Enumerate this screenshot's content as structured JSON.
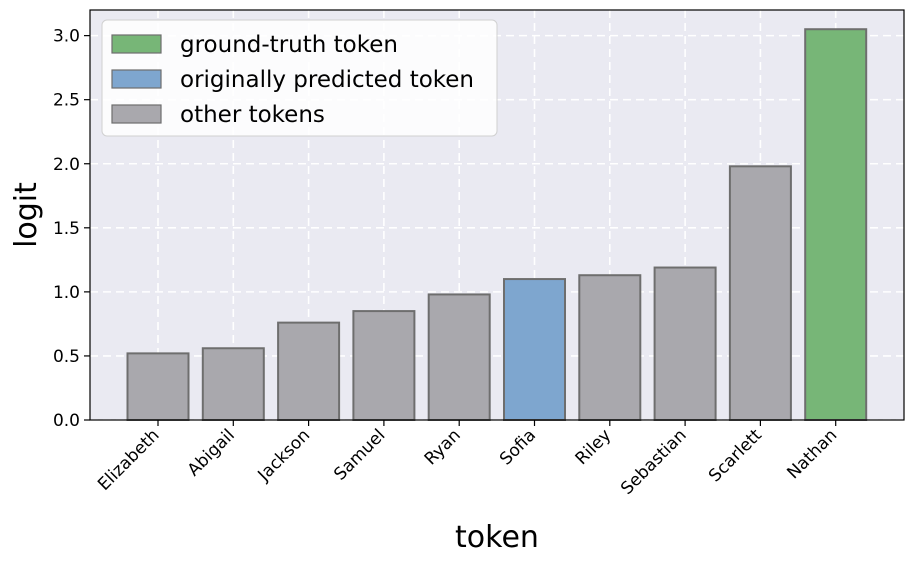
{
  "chart_data": {
    "type": "bar",
    "categories": [
      "Elizabeth",
      "Abigail",
      "Jackson",
      "Samuel",
      "Ryan",
      "Sofia",
      "Riley",
      "Sebastian",
      "Scarlett",
      "Nathan"
    ],
    "values": [
      0.52,
      0.56,
      0.76,
      0.85,
      0.98,
      1.1,
      1.13,
      1.19,
      1.98,
      3.05
    ],
    "bar_roles": [
      "other",
      "other",
      "other",
      "other",
      "other",
      "predicted",
      "other",
      "other",
      "other",
      "ground_truth"
    ],
    "xlabel": "token",
    "ylabel": "logit",
    "ylim": [
      0,
      3.2
    ],
    "yticks": [
      0.0,
      0.5,
      1.0,
      1.5,
      2.0,
      2.5,
      3.0
    ],
    "ytick_labels": [
      "0.0",
      "0.5",
      "1.0",
      "1.5",
      "2.0",
      "2.5",
      "3.0"
    ],
    "grid": true,
    "legend_position": "top-left",
    "legend": [
      {
        "role": "ground_truth",
        "label": "ground-truth token"
      },
      {
        "role": "predicted",
        "label": "originally predicted token"
      },
      {
        "role": "other",
        "label": "other tokens"
      }
    ],
    "colors": {
      "ground_truth": "#77b677",
      "predicted": "#7ea6cf",
      "other": "#a9a8ad",
      "bar_edge": "#6e6e6e",
      "plot_background": "#eaeaf2"
    }
  }
}
